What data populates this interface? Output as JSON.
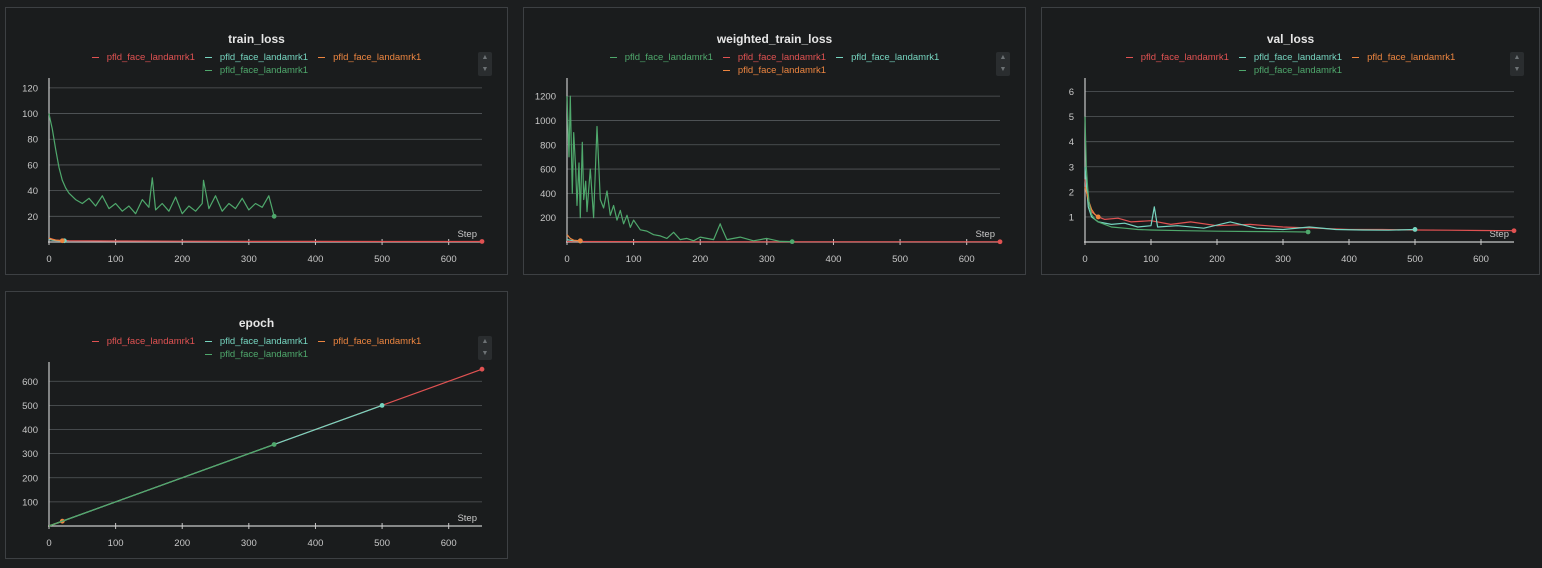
{
  "colors": {
    "red": "#e05252",
    "teal": "#76d5c0",
    "orange": "#ec8540",
    "green": "#4fa86c",
    "background": "#1a1c1d",
    "grid": "#55595c",
    "axis": "#c8c8c8"
  },
  "icons": {
    "legend_up": "▲",
    "legend_down": "▼"
  },
  "chart_data": [
    {
      "id": "train_loss",
      "type": "line",
      "title": "train_loss",
      "xlabel": "Step",
      "ylabel": "",
      "xlim": [
        0,
        650
      ],
      "ylim": [
        0,
        123
      ],
      "xticks": [
        0,
        100,
        200,
        300,
        400,
        500,
        600
      ],
      "yticks": [
        20,
        40,
        60,
        80,
        100,
        120
      ],
      "grid": true,
      "legend_position": "top",
      "legend": [
        {
          "label": "pfld_face_landamrk1",
          "color": "red"
        },
        {
          "label": "pfld_face_landamrk1",
          "color": "teal"
        },
        {
          "label": "pfld_face_landamrk1",
          "color": "orange"
        },
        {
          "label": "pfld_face_landamrk1",
          "color": "green"
        }
      ],
      "series": [
        {
          "color": "red",
          "x": [
            0,
            10,
            30,
            100,
            200,
            300,
            400,
            500,
            600,
            650
          ],
          "y": [
            3,
            1.5,
            1,
            0.8,
            0.6,
            0.5,
            0.5,
            0.4,
            0.4,
            0.4
          ]
        },
        {
          "color": "teal",
          "x": [
            0,
            5,
            10,
            15,
            20,
            23
          ],
          "y": [
            2,
            1.5,
            1.2,
            1.1,
            1,
            1
          ]
        },
        {
          "color": "orange",
          "x": [
            0,
            5,
            10,
            15,
            20
          ],
          "y": [
            3,
            2,
            1.5,
            1.2,
            1
          ]
        },
        {
          "color": "green",
          "x": [
            0,
            2,
            5,
            10,
            15,
            20,
            25,
            30,
            40,
            50,
            60,
            70,
            80,
            90,
            100,
            110,
            120,
            130,
            140,
            150,
            155,
            160,
            170,
            180,
            190,
            200,
            210,
            220,
            230,
            232,
            240,
            250,
            260,
            270,
            280,
            290,
            300,
            310,
            320,
            330,
            338
          ],
          "y": [
            100,
            95,
            88,
            72,
            58,
            48,
            42,
            38,
            33,
            30,
            34,
            28,
            36,
            26,
            30,
            24,
            28,
            22,
            33,
            27,
            50,
            25,
            30,
            24,
            35,
            22,
            28,
            24,
            30,
            48,
            26,
            36,
            24,
            30,
            26,
            34,
            25,
            30,
            27,
            36,
            20
          ]
        }
      ]
    },
    {
      "id": "weighted_train_loss",
      "type": "line",
      "title": "weighted_train_loss",
      "xlabel": "Step",
      "ylabel": "",
      "xlim": [
        0,
        650
      ],
      "ylim": [
        0,
        1300
      ],
      "xticks": [
        0,
        100,
        200,
        300,
        400,
        500,
        600
      ],
      "yticks": [
        200,
        400,
        600,
        800,
        1000,
        1200
      ],
      "grid": true,
      "legend_position": "top",
      "legend": [
        {
          "label": "pfld_face_landamrk1",
          "color": "green"
        },
        {
          "label": "pfld_face_landamrk1",
          "color": "red"
        },
        {
          "label": "pfld_face_landamrk1",
          "color": "teal"
        },
        {
          "label": "pfld_face_landamrk1",
          "color": "orange"
        }
      ],
      "series": [
        {
          "color": "red",
          "x": [
            0,
            100,
            200,
            300,
            400,
            500,
            650
          ],
          "y": [
            4,
            3,
            2,
            2,
            2,
            2,
            2
          ]
        },
        {
          "color": "teal",
          "x": [
            0,
            10,
            20
          ],
          "y": [
            20,
            10,
            8
          ]
        },
        {
          "color": "orange",
          "x": [
            0,
            5,
            10,
            20
          ],
          "y": [
            60,
            30,
            15,
            10
          ]
        },
        {
          "color": "green",
          "x": [
            0,
            3,
            5,
            8,
            10,
            13,
            15,
            18,
            20,
            23,
            25,
            28,
            30,
            35,
            40,
            45,
            50,
            55,
            60,
            65,
            70,
            75,
            80,
            85,
            90,
            95,
            100,
            110,
            120,
            130,
            140,
            150,
            160,
            170,
            180,
            190,
            200,
            220,
            230,
            232,
            240,
            260,
            280,
            300,
            320,
            338
          ],
          "y": [
            1200,
            700,
            1200,
            400,
            900,
            600,
            300,
            650,
            200,
            820,
            350,
            500,
            250,
            600,
            200,
            950,
            350,
            280,
            420,
            220,
            300,
            180,
            260,
            150,
            220,
            120,
            180,
            100,
            90,
            60,
            50,
            30,
            80,
            20,
            30,
            10,
            40,
            20,
            150,
            120,
            20,
            40,
            10,
            30,
            5,
            3
          ]
        }
      ]
    },
    {
      "id": "val_loss",
      "type": "line",
      "title": "val_loss",
      "xlabel": "Step",
      "ylabel": "",
      "xlim": [
        0,
        650
      ],
      "ylim": [
        0,
        6.3
      ],
      "xticks": [
        0,
        100,
        200,
        300,
        400,
        500,
        600
      ],
      "yticks": [
        1,
        2,
        3,
        4,
        5,
        6
      ],
      "grid": true,
      "legend_position": "top",
      "legend": [
        {
          "label": "pfld_face_landamrk1",
          "color": "red"
        },
        {
          "label": "pfld_face_landamrk1",
          "color": "teal"
        },
        {
          "label": "pfld_face_landamrk1",
          "color": "orange"
        },
        {
          "label": "pfld_face_landamrk1",
          "color": "green"
        }
      ],
      "series": [
        {
          "color": "red",
          "x": [
            0,
            5,
            10,
            20,
            30,
            50,
            70,
            100,
            130,
            160,
            200,
            250,
            300,
            350,
            400,
            450,
            500,
            550,
            600,
            650
          ],
          "y": [
            2.5,
            1.6,
            1.2,
            1.0,
            0.9,
            0.95,
            0.8,
            0.85,
            0.7,
            0.8,
            0.65,
            0.7,
            0.6,
            0.55,
            0.5,
            0.5,
            0.48,
            0.47,
            0.46,
            0.45
          ]
        },
        {
          "color": "teal",
          "x": [
            0,
            5,
            10,
            20,
            40,
            60,
            80,
            100,
            105,
            110,
            140,
            180,
            220,
            260,
            300,
            340,
            380,
            420,
            460,
            500
          ],
          "y": [
            3,
            1.4,
            1.0,
            0.8,
            0.7,
            0.75,
            0.6,
            0.65,
            1.4,
            0.6,
            0.65,
            0.55,
            0.8,
            0.55,
            0.5,
            0.6,
            0.5,
            0.48,
            0.47,
            0.5
          ]
        },
        {
          "color": "orange",
          "x": [
            0,
            3,
            6,
            10,
            15,
            20
          ],
          "y": [
            2.2,
            1.9,
            1.6,
            1.3,
            1.1,
            1.0
          ]
        },
        {
          "color": "green",
          "x": [
            0,
            2,
            4,
            6,
            8,
            10,
            15,
            20,
            30,
            40,
            60,
            80,
            100,
            150,
            200,
            250,
            300,
            338
          ],
          "y": [
            5.0,
            3.0,
            2.2,
            1.6,
            1.3,
            1.1,
            0.9,
            0.8,
            0.7,
            0.6,
            0.55,
            0.5,
            0.48,
            0.45,
            0.43,
            0.42,
            0.41,
            0.4
          ]
        }
      ]
    },
    {
      "id": "epoch",
      "type": "line",
      "title": "epoch",
      "xlabel": "Step",
      "ylabel": "",
      "xlim": [
        0,
        650
      ],
      "ylim": [
        0,
        655
      ],
      "xticks": [
        0,
        100,
        200,
        300,
        400,
        500,
        600
      ],
      "yticks": [
        100,
        200,
        300,
        400,
        500,
        600
      ],
      "grid": true,
      "legend_position": "top",
      "legend": [
        {
          "label": "pfld_face_landamrk1",
          "color": "red"
        },
        {
          "label": "pfld_face_landamrk1",
          "color": "teal"
        },
        {
          "label": "pfld_face_landamrk1",
          "color": "orange"
        },
        {
          "label": "pfld_face_landamrk1",
          "color": "green"
        }
      ],
      "series": [
        {
          "color": "red",
          "x": [
            0,
            650
          ],
          "y": [
            0,
            650
          ]
        },
        {
          "color": "teal",
          "x": [
            0,
            500
          ],
          "y": [
            0,
            500
          ]
        },
        {
          "color": "orange",
          "x": [
            0,
            20
          ],
          "y": [
            0,
            20
          ]
        },
        {
          "color": "green",
          "x": [
            0,
            338
          ],
          "y": [
            0,
            338
          ]
        }
      ]
    }
  ]
}
